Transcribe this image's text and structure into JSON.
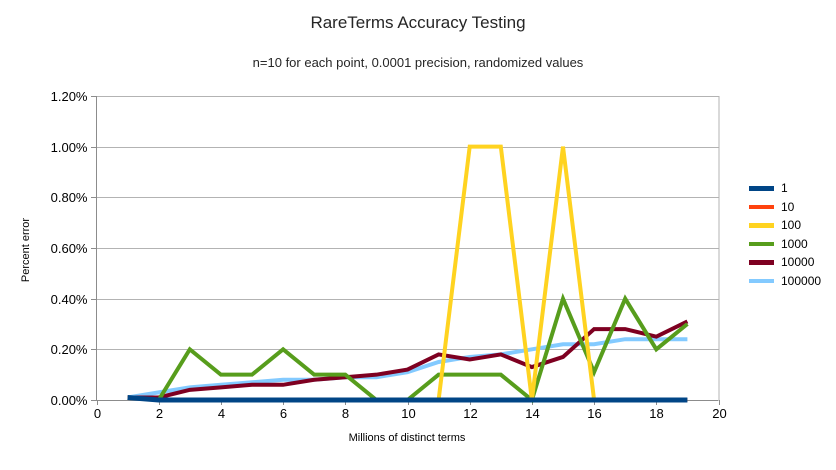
{
  "title": "RareTerms Accuracy Testing",
  "subtitle": "n=10 for each point, 0.0001 precision, randomized values",
  "chart_data": {
    "type": "line",
    "x": [
      1,
      2,
      3,
      4,
      5,
      6,
      7,
      8,
      9,
      10,
      11,
      12,
      13,
      14,
      15,
      16,
      17,
      18,
      19
    ],
    "series": [
      {
        "name": "1",
        "color": "#004586",
        "values": [
          0.01,
          0,
          0,
          0,
          0,
          0,
          0,
          0,
          0,
          0,
          0,
          0,
          0,
          0,
          0,
          0,
          0,
          0,
          0
        ]
      },
      {
        "name": "10",
        "color": "#FF420E",
        "values": [
          0.01,
          0,
          0,
          0,
          0,
          0,
          0,
          0,
          0,
          0,
          0,
          0,
          0,
          0,
          0,
          0,
          0,
          0,
          0
        ]
      },
      {
        "name": "100",
        "color": "#FFD320",
        "values": [
          0.01,
          0,
          0,
          0,
          0,
          0,
          0,
          0,
          0,
          0,
          0,
          1.0,
          1.0,
          0,
          1.0,
          0,
          0,
          0,
          0
        ]
      },
      {
        "name": "1000",
        "color": "#579D1C",
        "values": [
          0.01,
          0,
          0.2,
          0.1,
          0.1,
          0.2,
          0.1,
          0.1,
          0,
          0,
          0.1,
          0.1,
          0.1,
          0,
          0.4,
          0.11,
          0.4,
          0.2,
          0.3
        ]
      },
      {
        "name": "10000",
        "color": "#7E0021",
        "values": [
          0.01,
          0.01,
          0.04,
          0.05,
          0.06,
          0.06,
          0.08,
          0.09,
          0.1,
          0.12,
          0.18,
          0.16,
          0.18,
          0.13,
          0.17,
          0.28,
          0.28,
          0.25,
          0.31
        ]
      },
      {
        "name": "100000",
        "color": "#83CAFF",
        "values": [
          0.01,
          0.03,
          0.05,
          0.06,
          0.07,
          0.08,
          0.08,
          0.09,
          0.09,
          0.11,
          0.15,
          0.17,
          0.18,
          0.2,
          0.22,
          0.22,
          0.24,
          0.24,
          0.24
        ]
      }
    ],
    "xlabel": "Millions of distinct terms",
    "ylabel": "Percent error",
    "y_unit": "%",
    "xlim": [
      0,
      20
    ],
    "ylim": [
      0,
      1.2
    ],
    "x_ticks": [
      0,
      2,
      4,
      6,
      8,
      10,
      12,
      14,
      16,
      18,
      20
    ],
    "y_tick_values": [
      0,
      0.2,
      0.4,
      0.6,
      0.8,
      1.0,
      1.2
    ],
    "y_tick_labels": [
      "0.00%",
      "0.20%",
      "0.40%",
      "0.60%",
      "0.80%",
      "1.00%",
      "1.20%"
    ],
    "grid": "horizontal",
    "legend_position": "right",
    "grid_color": "#b3b3b3",
    "axis_color": "#8c8c8c"
  }
}
